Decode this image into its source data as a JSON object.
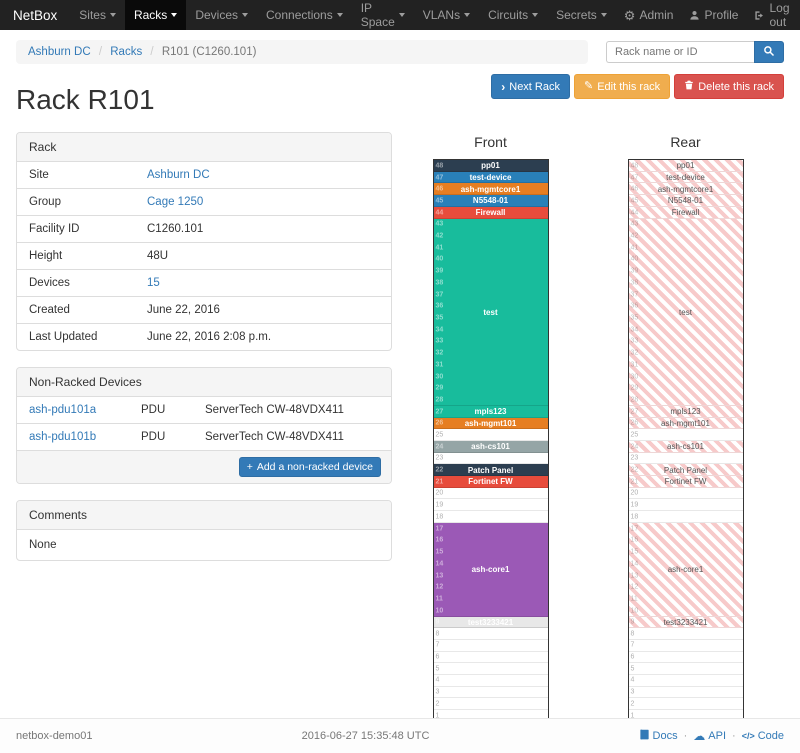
{
  "navbar": {
    "brand": "NetBox",
    "items": [
      {
        "key": "sites",
        "label": "Sites"
      },
      {
        "key": "racks",
        "label": "Racks",
        "active": true
      },
      {
        "key": "devices",
        "label": "Devices"
      },
      {
        "key": "connections",
        "label": "Connections"
      },
      {
        "key": "ip-space",
        "label": "IP Space"
      },
      {
        "key": "vlans",
        "label": "VLANs"
      },
      {
        "key": "circuits",
        "label": "Circuits"
      },
      {
        "key": "secrets",
        "label": "Secrets"
      }
    ],
    "admin": "Admin",
    "profile": "Profile",
    "logout": "Log out"
  },
  "breadcrumb": {
    "items": [
      "Ashburn DC",
      "Racks",
      "R101 (C1260.101)"
    ]
  },
  "search": {
    "placeholder": "Rack name or ID"
  },
  "actions": {
    "next_rack": "Next Rack",
    "edit_rack": "Edit this rack",
    "delete_rack": "Delete this rack"
  },
  "page_title": "Rack R101",
  "rack_panel": {
    "title": "Rack",
    "rows": [
      {
        "label": "Site",
        "value": "Ashburn DC",
        "link": true
      },
      {
        "label": "Group",
        "value": "Cage 1250",
        "link": true
      },
      {
        "label": "Facility ID",
        "value": "C1260.101"
      },
      {
        "label": "Height",
        "value": "48U"
      },
      {
        "label": "Devices",
        "value": "15",
        "link": true
      },
      {
        "label": "Created",
        "value": "June 22, 2016"
      },
      {
        "label": "Last Updated",
        "value": "June 22, 2016 2:08 p.m."
      }
    ]
  },
  "nonracked_panel": {
    "title": "Non-Racked Devices",
    "rows": [
      {
        "name": "ash-pdu101a",
        "role": "PDU",
        "type": "ServerTech CW-48VDX411"
      },
      {
        "name": "ash-pdu101b",
        "role": "PDU",
        "type": "ServerTech CW-48VDX411"
      }
    ],
    "add_button": "Add a non-racked device"
  },
  "comments_panel": {
    "title": "Comments",
    "value": "None"
  },
  "elevation": {
    "front_title": "Front",
    "rear_title": "Rear",
    "units": 48,
    "devices": [
      {
        "name": "pp01",
        "top_u": 48,
        "height": 1,
        "color": "#2c3e50"
      },
      {
        "name": "test-device",
        "top_u": 47,
        "height": 1,
        "color": "#2980b9"
      },
      {
        "name": "ash-mgmtcore1",
        "top_u": 46,
        "height": 1,
        "color": "#e67e22"
      },
      {
        "name": "N5548-01",
        "top_u": 45,
        "height": 1,
        "color": "#2980b9"
      },
      {
        "name": "Firewall",
        "top_u": 44,
        "height": 1,
        "color": "#e74c3c"
      },
      {
        "name": "test",
        "top_u": 43,
        "height": 16,
        "color": "#18bc9c"
      },
      {
        "name": "mpls123",
        "top_u": 27,
        "height": 1,
        "color": "#18bc9c"
      },
      {
        "name": "ash-mgmt101",
        "top_u": 26,
        "height": 1,
        "color": "#e67e22"
      },
      {
        "name": "ash-cs101",
        "top_u": 24,
        "height": 1,
        "color": "#95a5a6"
      },
      {
        "name": "Patch Panel",
        "top_u": 22,
        "height": 1,
        "color": "#2c3e50"
      },
      {
        "name": "Fortinet FW",
        "top_u": 21,
        "height": 1,
        "color": "#e74c3c"
      },
      {
        "name": "ash-core1",
        "top_u": 17,
        "height": 8,
        "color": "#9b59b6"
      },
      {
        "name": "test3233421",
        "top_u": 9,
        "height": 1,
        "color": "#e8e8e8",
        "text_color": "#ffffff"
      }
    ]
  },
  "footer": {
    "hostname": "netbox-demo01",
    "timestamp": "2016-06-27 15:35:48 UTC",
    "docs": "Docs",
    "api": "API",
    "code": "Code"
  }
}
